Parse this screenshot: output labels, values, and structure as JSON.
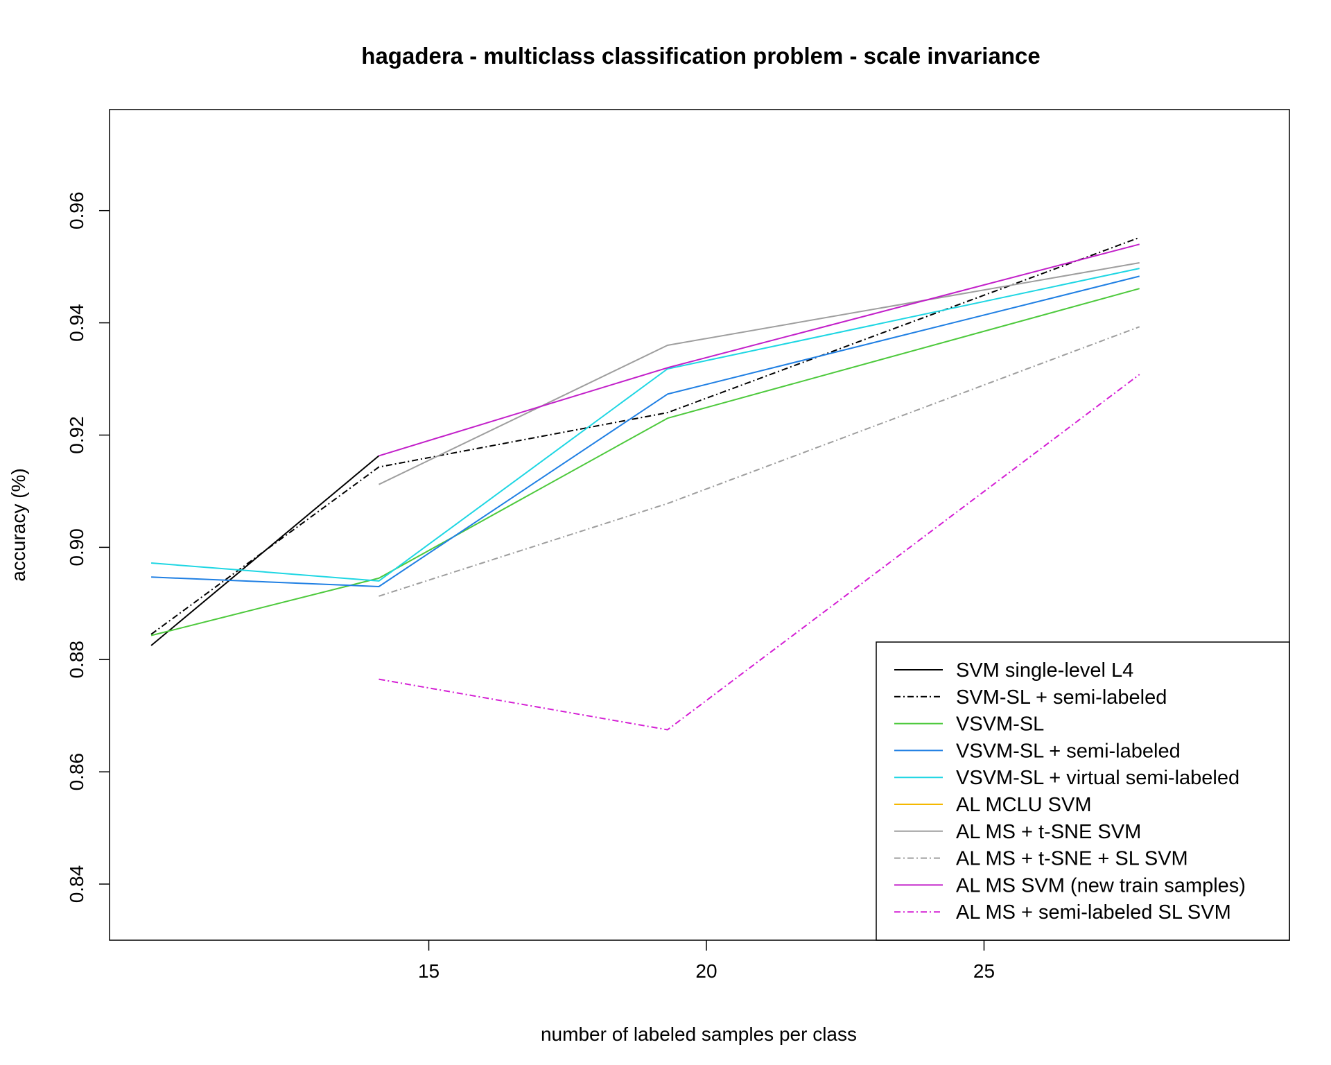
{
  "chart_data": {
    "type": "line",
    "title": "hagadera - multiclass classification problem - scale invariance",
    "xlabel": "number of labeled samples per class",
    "ylabel": "accuracy (%)",
    "xlim": [
      9.25,
      30.5
    ],
    "ylim": [
      0.83,
      0.978
    ],
    "x_ticks": [
      15,
      20,
      25
    ],
    "y_ticks": [
      0.84,
      0.86,
      0.88,
      0.9,
      0.92,
      0.94,
      0.96
    ],
    "x_tick_labels": [
      "15",
      "20",
      "25"
    ],
    "y_tick_labels": [
      "0.84",
      "0.86",
      "0.88",
      "0.90",
      "0.92",
      "0.94",
      "0.96"
    ],
    "grid": false,
    "legend_position": "bottom-right",
    "x": [
      10,
      14.1,
      19.3,
      27.8
    ],
    "series": [
      {
        "name": "SVM single-level L4",
        "color": "#000000",
        "dash": "solid",
        "values": [
          0.8825,
          0.9163,
          null,
          null
        ]
      },
      {
        "name": "SVM-SL + semi-labeled",
        "color": "#000000",
        "dash": "dashdot",
        "values": [
          0.8845,
          0.9143,
          0.924,
          0.9552
        ]
      },
      {
        "name": "VSVM-SL",
        "color": "#4dc93c",
        "dash": "solid",
        "values": [
          0.8843,
          0.8945,
          0.923,
          0.9461
        ]
      },
      {
        "name": "VSVM-SL + semi-labeled",
        "color": "#1f7fe3",
        "dash": "solid",
        "values": [
          0.8947,
          0.893,
          0.9273,
          0.9483
        ]
      },
      {
        "name": "VSVM-SL + virtual semi-labeled",
        "color": "#1ed6e3",
        "dash": "solid",
        "values": [
          0.8972,
          0.894,
          0.9318,
          0.9497
        ]
      },
      {
        "name": "AL MCLU SVM",
        "color": "#f5b800",
        "dash": "solid",
        "values": [
          null,
          null,
          null,
          null
        ]
      },
      {
        "name": "AL MS + t-SNE SVM",
        "color": "#9e9e9e",
        "dash": "solid",
        "values": [
          null,
          0.9112,
          0.936,
          0.9507
        ]
      },
      {
        "name": "AL MS + t-SNE + SL SVM",
        "color": "#9e9e9e",
        "dash": "dashdot",
        "values": [
          null,
          0.8913,
          0.9078,
          0.9393
        ]
      },
      {
        "name": "AL MS SVM (new train samples)",
        "color": "#c21fc9",
        "dash": "solid",
        "values": [
          null,
          0.9163,
          0.932,
          0.954
        ]
      },
      {
        "name": "AL MS + semi-labeled SL SVM",
        "color": "#d41ed4",
        "dash": "dashdot",
        "values": [
          null,
          0.8765,
          0.8675,
          0.9308
        ]
      }
    ]
  }
}
